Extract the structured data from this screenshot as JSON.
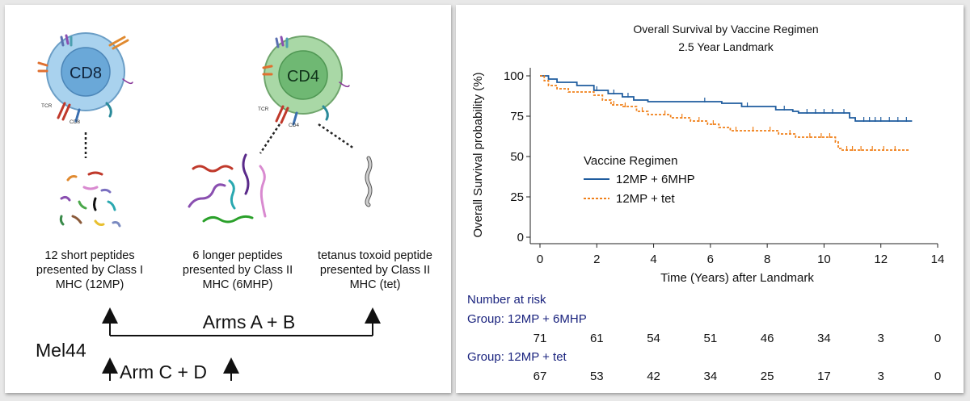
{
  "diagram": {
    "cell_cd8": {
      "label": "CD8",
      "tcr_label": "TCR",
      "receptor_label": "CD8",
      "fill": "#a9d2ee",
      "nucleus": "#6aa8d8"
    },
    "cell_cd4": {
      "label": "CD4",
      "tcr_label": "TCR",
      "receptor_label": "CD4",
      "fill": "#a9d8a6",
      "nucleus": "#6fb873"
    },
    "captions": {
      "short": "12 short peptides\npresented by Class I\nMHC (12MP)",
      "long": "6 longer peptides\npresented by Class II\nMHC (6MHP)",
      "tet": "tetanus toxoid peptide\npresented by Class II\nMHC (tet)"
    },
    "arms_ab": "Arms A + B",
    "arm_cd": "Arm C + D",
    "trial": "Mel44"
  },
  "chart_data": {
    "type": "line",
    "title": "Overall Survival by Vaccine Regimen",
    "subtitle": "2.5 Year Landmark",
    "xlabel": "Time (Years) after Landmark",
    "ylabel": "Overall Survival probability (%)",
    "xlim": [
      0,
      14
    ],
    "ylim": [
      0,
      100
    ],
    "xticks": [
      0,
      2,
      4,
      6,
      8,
      10,
      12,
      14
    ],
    "yticks": [
      0,
      25,
      50,
      75,
      100
    ],
    "legend_title": "Vaccine Regimen",
    "legend_position": "center-left",
    "series": [
      {
        "name": "12MP + 6MHP",
        "color": "#1f5c9e",
        "dashed": false,
        "steps": [
          [
            0,
            100
          ],
          [
            0.3,
            98
          ],
          [
            0.6,
            96
          ],
          [
            1.3,
            94
          ],
          [
            1.9,
            91
          ],
          [
            2.4,
            89
          ],
          [
            2.9,
            87
          ],
          [
            3.3,
            85
          ],
          [
            3.8,
            84
          ],
          [
            6.4,
            83
          ],
          [
            7.1,
            81
          ],
          [
            8.3,
            79
          ],
          [
            8.9,
            78
          ],
          [
            9.1,
            77
          ],
          [
            10.9,
            74
          ],
          [
            11.1,
            72
          ],
          [
            13.1,
            72
          ]
        ],
        "censor": [
          2.0,
          2.6,
          3.1,
          5.8,
          7.3,
          8.6,
          9.4,
          9.7,
          10.0,
          10.3,
          10.7,
          11.4,
          11.6,
          11.8,
          12.0,
          12.3,
          12.6,
          12.9
        ]
      },
      {
        "name": "12MP + tet",
        "color": "#f0801a",
        "dashed": true,
        "steps": [
          [
            0,
            100
          ],
          [
            0.15,
            97
          ],
          [
            0.3,
            94
          ],
          [
            0.6,
            92
          ],
          [
            1.0,
            90
          ],
          [
            1.9,
            88
          ],
          [
            2.2,
            85
          ],
          [
            2.5,
            82
          ],
          [
            2.9,
            81
          ],
          [
            3.4,
            78
          ],
          [
            3.8,
            76
          ],
          [
            4.6,
            74
          ],
          [
            5.3,
            72
          ],
          [
            5.9,
            70
          ],
          [
            6.3,
            68
          ],
          [
            6.7,
            66
          ],
          [
            8.4,
            64
          ],
          [
            9.0,
            62
          ],
          [
            10.4,
            59
          ],
          [
            10.5,
            55
          ],
          [
            10.6,
            54
          ],
          [
            13.0,
            54
          ]
        ],
        "censor": [
          2.6,
          3.0,
          3.6,
          4.4,
          5.0,
          5.6,
          6.1,
          6.9,
          7.5,
          8.1,
          8.8,
          9.5,
          9.9,
          10.2,
          10.8,
          11.0,
          11.3,
          11.7,
          12.1,
          12.5
        ]
      }
    ],
    "risk_table": {
      "title": "Number at risk",
      "times": [
        0,
        2,
        4,
        6,
        8,
        10,
        12,
        14
      ],
      "groups": [
        {
          "label": "Group: 12MP + 6MHP",
          "counts": [
            71,
            61,
            54,
            51,
            46,
            34,
            3,
            0
          ]
        },
        {
          "label": "Group: 12MP + tet",
          "counts": [
            67,
            53,
            42,
            34,
            25,
            17,
            3,
            0
          ]
        }
      ]
    }
  }
}
